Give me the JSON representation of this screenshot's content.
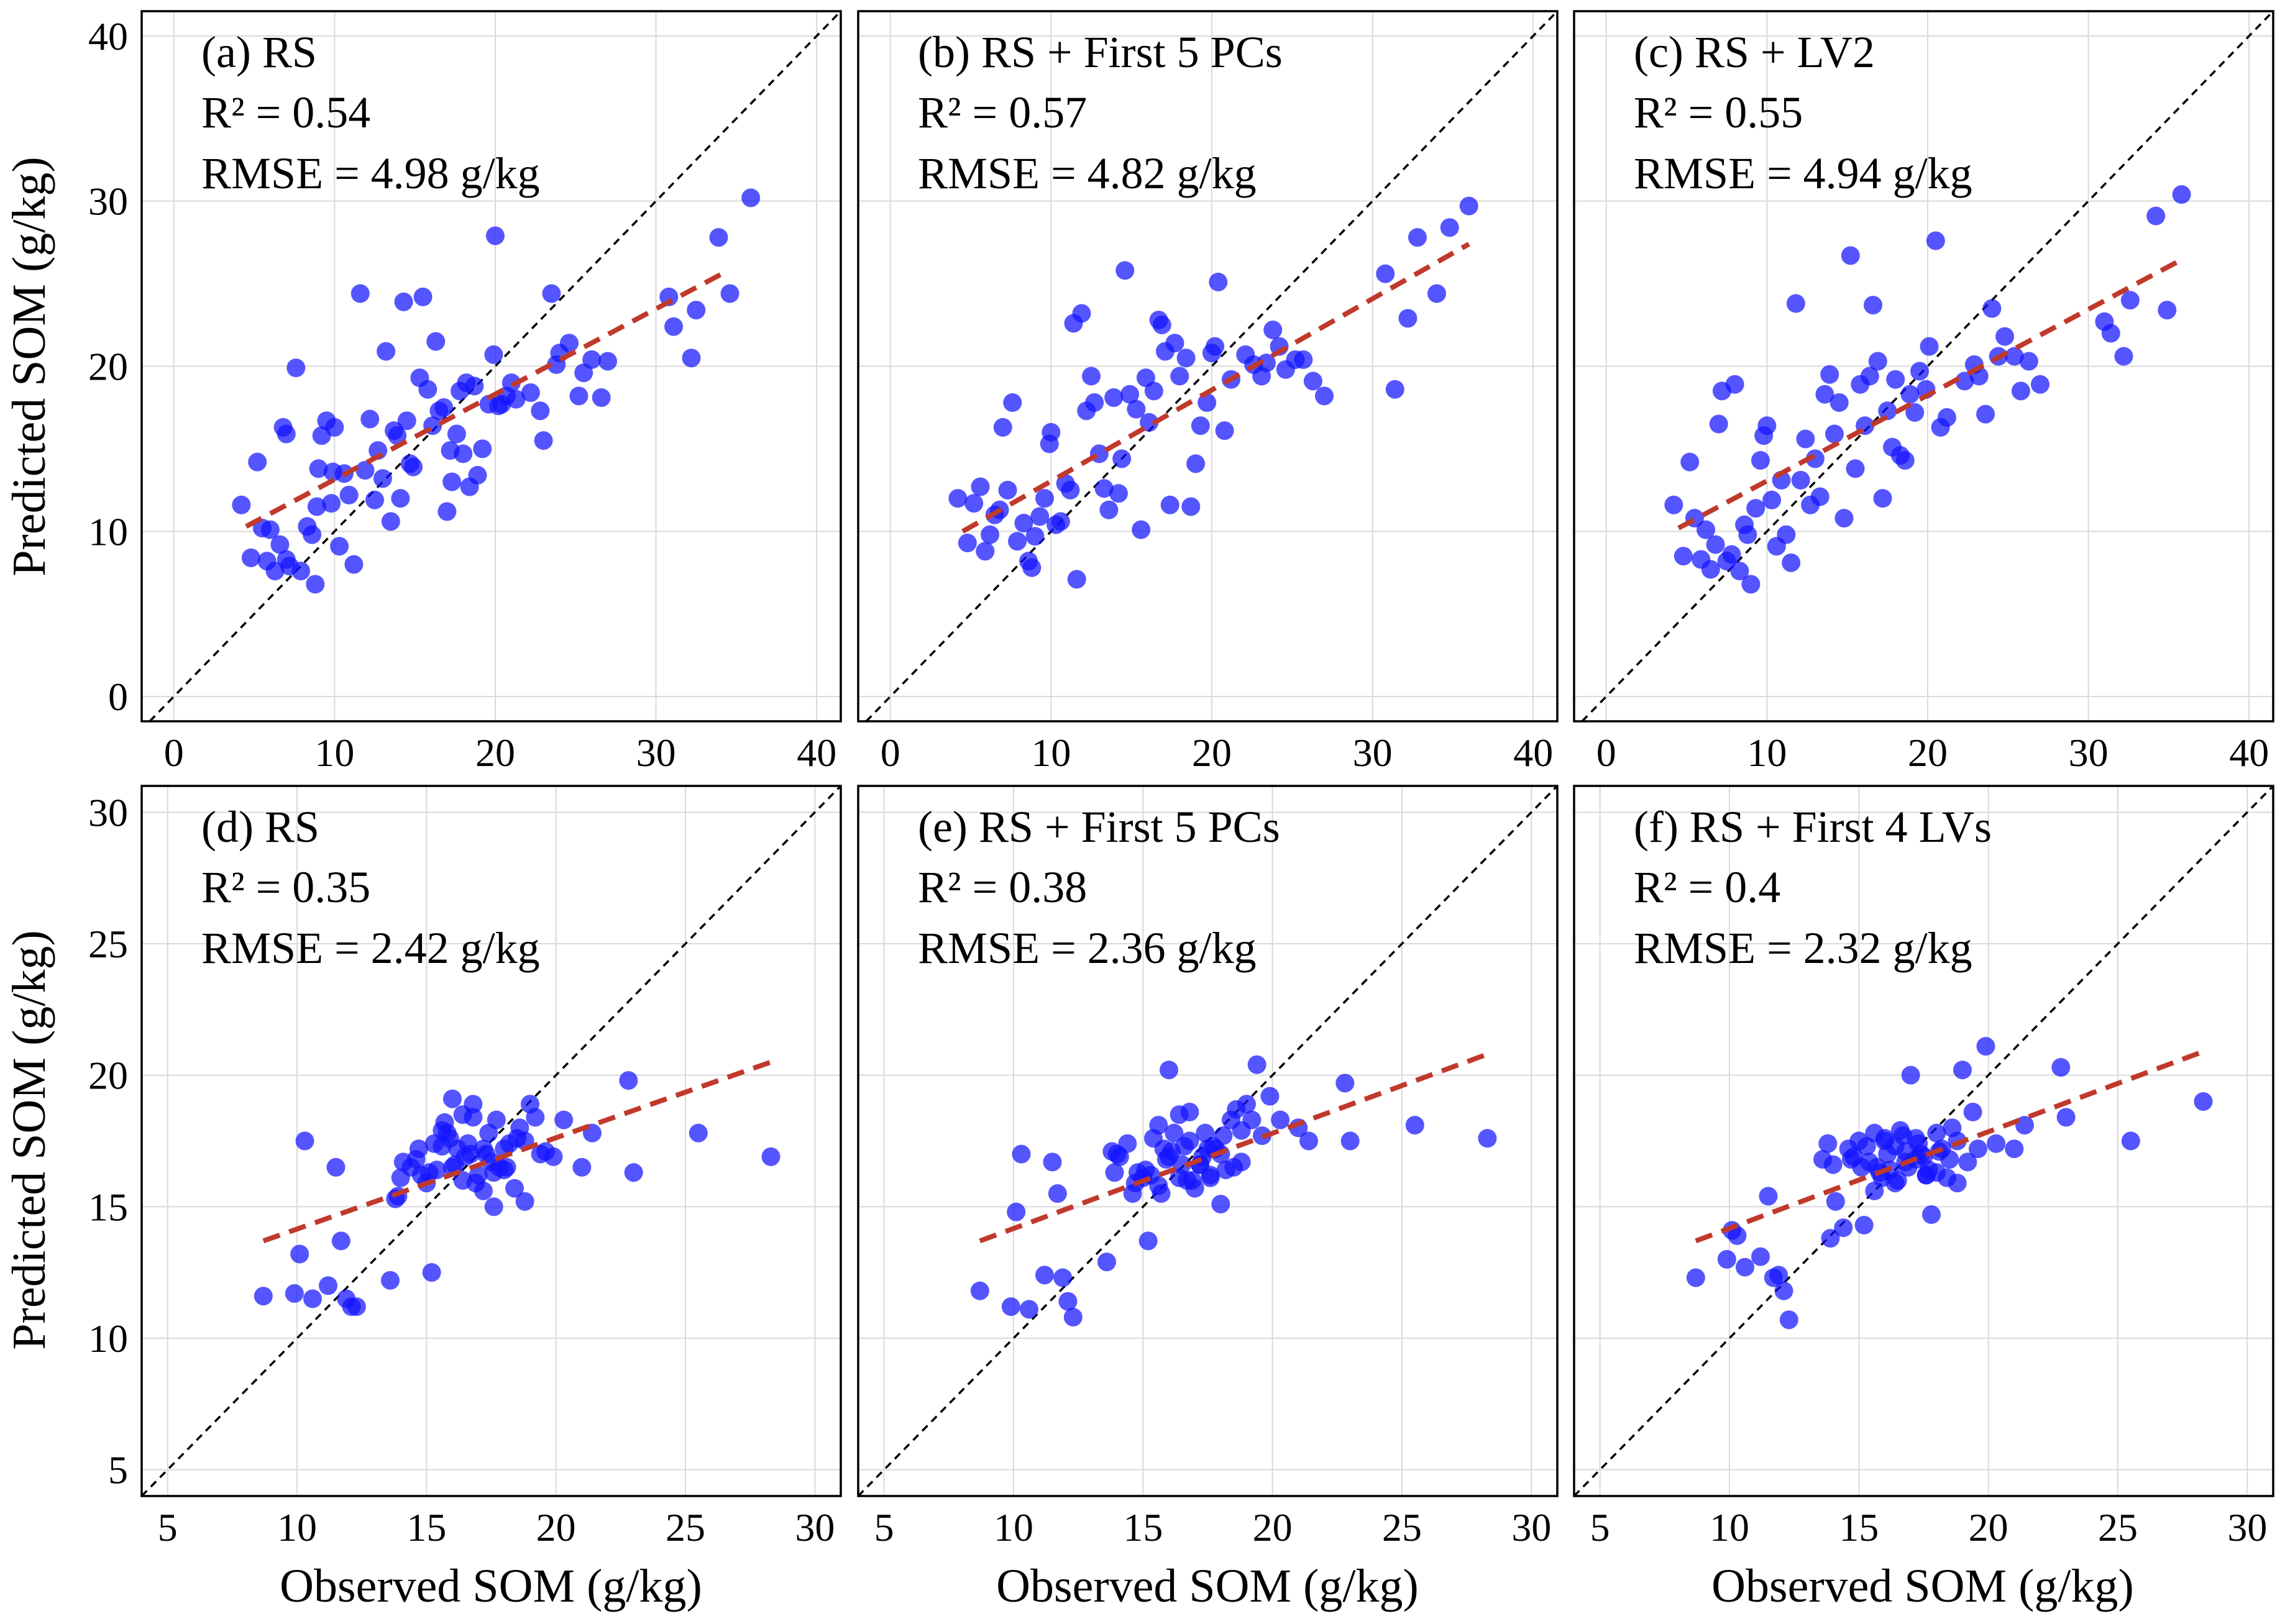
{
  "figure": {
    "ylabel": "Predicted SOM (g/kg)",
    "xlabel": "Observed SOM (g/kg)"
  },
  "colors": {
    "point": "#1414ff",
    "fit": "#c0392b",
    "identity": "#000000",
    "grid": "#d9d9d9",
    "frame": "#000000"
  },
  "chart_data": [
    {
      "type": "scatter",
      "panel": "a",
      "title": "(a) RS",
      "r2_text": "R² = 0.54",
      "rmse_text": "RMSE = 4.98 g/kg",
      "xlim": [
        -2,
        41.5
      ],
      "ylim": [
        -1.5,
        41.5
      ],
      "xticks": [
        0,
        10,
        20,
        30,
        40
      ],
      "yticks": [
        0,
        10,
        20,
        30,
        40
      ],
      "xlabel": "",
      "ylabel": "Predicted SOM (g/kg)",
      "fit_line": [
        [
          4.5,
          10.3
        ],
        [
          34.5,
          25.8
        ]
      ],
      "x": [
        4.2,
        4.8,
        5.2,
        5.5,
        5.8,
        6.0,
        6.3,
        6.6,
        6.8,
        7.0,
        7.0,
        7.2,
        7.6,
        7.9,
        8.3,
        8.6,
        8.8,
        8.9,
        9.0,
        9.2,
        9.5,
        9.8,
        9.9,
        10.0,
        10.3,
        10.6,
        10.9,
        11.2,
        11.6,
        11.9,
        12.2,
        12.5,
        12.7,
        13.0,
        13.2,
        13.5,
        13.7,
        13.9,
        14.1,
        14.3,
        14.5,
        14.7,
        14.9,
        15.3,
        15.5,
        15.8,
        16.1,
        16.3,
        16.5,
        16.8,
        17.0,
        17.2,
        17.3,
        17.6,
        17.8,
        18.0,
        18.2,
        18.4,
        18.7,
        18.9,
        19.2,
        19.6,
        19.9,
        20.0,
        20.2,
        20.4,
        20.7,
        21.0,
        21.3,
        22.2,
        22.8,
        23.0,
        23.5,
        23.8,
        24.0,
        24.6,
        25.2,
        25.5,
        26.0,
        26.6,
        27.0,
        30.8,
        31.1,
        32.2,
        32.5,
        33.9,
        34.6,
        35.9
      ],
      "y": [
        11.6,
        8.4,
        14.2,
        10.2,
        8.2,
        10.1,
        7.6,
        9.2,
        16.3,
        15.9,
        8.3,
        7.9,
        19.9,
        7.6,
        10.3,
        9.8,
        6.8,
        11.5,
        13.8,
        15.8,
        16.7,
        11.7,
        13.6,
        16.3,
        9.1,
        13.5,
        12.2,
        8.0,
        24.4,
        13.7,
        16.8,
        11.9,
        14.9,
        13.2,
        20.9,
        10.6,
        16.1,
        15.8,
        12.0,
        23.9,
        16.7,
        14.1,
        13.9,
        19.3,
        24.2,
        18.6,
        16.4,
        21.5,
        17.3,
        17.5,
        11.2,
        14.9,
        13.0,
        15.9,
        18.5,
        14.7,
        19.0,
        12.7,
        18.8,
        13.4,
        15.0,
        17.7,
        20.7,
        27.9,
        17.6,
        17.7,
        18.2,
        19.0,
        18.0,
        18.4,
        17.3,
        15.5,
        24.4,
        20.1,
        20.8,
        21.4,
        18.2,
        19.6,
        20.4,
        18.1,
        20.3,
        24.2,
        22.4,
        20.5,
        23.4,
        27.8,
        24.4,
        30.2
      ]
    },
    {
      "type": "scatter",
      "panel": "b",
      "title": "(b) RS + First 5 PCs",
      "r2_text": "R² = 0.57",
      "rmse_text": "RMSE = 4.82 g/kg",
      "xlim": [
        -2,
        41.5
      ],
      "ylim": [
        -1.5,
        41.5
      ],
      "xticks": [
        0,
        10,
        20,
        30,
        40
      ],
      "yticks": [
        0,
        10,
        20,
        30,
        40
      ],
      "xlabel": "",
      "ylabel": "",
      "fit_line": [
        [
          4.5,
          10.0
        ],
        [
          36.0,
          27.4
        ]
      ],
      "x": [
        4.2,
        4.8,
        5.2,
        5.6,
        5.9,
        6.2,
        6.5,
        6.8,
        7.0,
        7.3,
        7.6,
        7.9,
        8.3,
        8.6,
        8.8,
        9.0,
        9.3,
        9.6,
        9.9,
        10.0,
        10.3,
        10.6,
        10.9,
        11.2,
        11.4,
        11.6,
        11.9,
        12.2,
        12.5,
        12.7,
        13.0,
        13.3,
        13.6,
        13.9,
        14.2,
        14.4,
        14.6,
        14.9,
        15.3,
        15.6,
        15.9,
        16.1,
        16.4,
        16.7,
        16.9,
        17.1,
        17.4,
        17.7,
        18.0,
        18.4,
        18.7,
        19.0,
        19.3,
        19.7,
        20.0,
        20.2,
        20.4,
        20.8,
        21.2,
        22.1,
        22.6,
        23.1,
        23.4,
        23.8,
        24.2,
        24.6,
        25.2,
        25.7,
        26.3,
        27.0,
        30.8,
        31.4,
        32.2,
        32.8,
        34.0,
        34.8,
        36.0
      ],
      "y": [
        12.0,
        9.3,
        11.7,
        12.7,
        8.8,
        9.8,
        11.0,
        11.3,
        16.3,
        12.5,
        17.8,
        9.4,
        10.5,
        8.2,
        7.8,
        9.7,
        10.9,
        12.0,
        15.3,
        16.0,
        10.4,
        10.6,
        12.9,
        12.5,
        22.6,
        7.1,
        23.2,
        17.3,
        19.4,
        17.8,
        14.7,
        12.6,
        11.3,
        18.1,
        12.3,
        14.4,
        25.8,
        18.3,
        17.4,
        10.1,
        19.3,
        16.6,
        18.5,
        22.8,
        22.5,
        20.9,
        11.6,
        21.4,
        19.4,
        20.5,
        11.5,
        14.1,
        16.4,
        17.8,
        20.8,
        21.2,
        25.1,
        16.1,
        19.2,
        20.7,
        20.1,
        19.4,
        20.2,
        22.2,
        21.2,
        19.8,
        20.4,
        20.4,
        19.1,
        18.2,
        25.6,
        18.6,
        22.9,
        27.8,
        24.4,
        28.4,
        29.7
      ]
    },
    {
      "type": "scatter",
      "panel": "c",
      "title": "(c) RS + LV2",
      "r2_text": "R² = 0.55",
      "rmse_text": "RMSE = 4.94 g/kg",
      "xlim": [
        -2,
        41.5
      ],
      "ylim": [
        -1.5,
        41.5
      ],
      "xticks": [
        0,
        10,
        20,
        30,
        40
      ],
      "yticks": [
        0,
        10,
        20,
        30,
        40
      ],
      "xlabel": "",
      "ylabel": "",
      "fit_line": [
        [
          4.5,
          10.2
        ],
        [
          35.5,
          26.3
        ]
      ],
      "x": [
        4.2,
        4.8,
        5.2,
        5.5,
        5.9,
        6.2,
        6.5,
        6.8,
        7.0,
        7.2,
        7.5,
        7.8,
        8.0,
        8.3,
        8.6,
        8.8,
        9.0,
        9.3,
        9.6,
        9.8,
        10.0,
        10.3,
        10.6,
        10.9,
        11.2,
        11.5,
        11.8,
        12.1,
        12.4,
        12.7,
        13.0,
        13.3,
        13.6,
        13.9,
        14.2,
        14.5,
        14.8,
        15.2,
        15.5,
        15.8,
        16.1,
        16.4,
        16.6,
        16.9,
        17.2,
        17.5,
        17.8,
        18.0,
        18.3,
        18.6,
        18.9,
        19.2,
        19.5,
        19.9,
        20.1,
        20.5,
        20.8,
        21.2,
        22.3,
        22.9,
        23.2,
        23.6,
        24.0,
        24.4,
        24.8,
        25.4,
        25.8,
        26.3,
        27.0,
        31.0,
        31.4,
        32.2,
        32.6,
        34.2,
        34.9,
        35.8
      ],
      "y": [
        11.6,
        8.5,
        14.2,
        10.8,
        8.3,
        10.1,
        7.7,
        9.2,
        16.5,
        18.5,
        8.2,
        8.6,
        18.9,
        7.6,
        10.4,
        9.8,
        6.8,
        11.4,
        14.3,
        15.8,
        16.4,
        11.9,
        9.1,
        13.1,
        9.8,
        8.1,
        23.8,
        13.1,
        15.6,
        11.6,
        14.4,
        12.1,
        18.3,
        19.5,
        15.9,
        17.8,
        10.8,
        26.7,
        13.8,
        18.9,
        16.4,
        19.4,
        23.7,
        20.3,
        12.0,
        17.3,
        15.1,
        19.2,
        14.6,
        14.3,
        18.3,
        17.2,
        19.7,
        18.6,
        21.2,
        27.6,
        16.3,
        16.9,
        19.1,
        20.1,
        19.4,
        17.1,
        23.5,
        20.6,
        21.8,
        20.6,
        18.5,
        20.3,
        18.9,
        22.7,
        22.0,
        20.6,
        24.0,
        29.1,
        23.4,
        30.4
      ]
    },
    {
      "type": "scatter",
      "panel": "d",
      "title": "(d) RS",
      "r2_text": "R² = 0.35",
      "rmse_text": "RMSE = 2.42 g/kg",
      "xlim": [
        4,
        31
      ],
      "ylim": [
        4,
        31
      ],
      "xticks": [
        5,
        10,
        15,
        20,
        25,
        30
      ],
      "yticks": [
        5,
        10,
        15,
        20,
        25,
        30
      ],
      "xlabel": "Observed SOM (g/kg)",
      "ylabel": "Predicted SOM (g/kg)",
      "fit_line": [
        [
          8.7,
          13.7
        ],
        [
          28.3,
          20.5
        ]
      ],
      "x": [
        8.7,
        9.9,
        10.1,
        10.3,
        10.6,
        11.2,
        11.5,
        11.7,
        11.9,
        12.1,
        12.3,
        13.6,
        13.9,
        14.1,
        14.4,
        14.7,
        15.0,
        15.2,
        15.4,
        15.6,
        15.8,
        16.0,
        16.2,
        16.4,
        16.6,
        16.8,
        17.0,
        17.2,
        17.4,
        17.6,
        17.8,
        18.0,
        18.2,
        18.4,
        18.6,
        18.8,
        19.0,
        19.2,
        19.4,
        19.6,
        19.9,
        20.3,
        21.0,
        21.4,
        22.8,
        23.0,
        25.5,
        28.3,
        14.0,
        14.6,
        15.3,
        15.7,
        16.1,
        16.5,
        16.9,
        17.3,
        17.7,
        18.1,
        18.5,
        15.1,
        15.9,
        16.7,
        17.5,
        13.8,
        14.8,
        15.6,
        16.4,
        17.2,
        18.0,
        18.8,
        16.0,
        16.8,
        17.6
      ],
      "y": [
        11.6,
        11.7,
        13.2,
        17.5,
        11.5,
        12.0,
        16.5,
        13.7,
        11.5,
        11.2,
        11.2,
        12.2,
        15.4,
        16.7,
        16.5,
        17.2,
        15.9,
        12.5,
        16.4,
        17.3,
        17.8,
        19.1,
        17.2,
        16.0,
        17.4,
        18.9,
        16.2,
        15.6,
        17.8,
        15.0,
        16.5,
        17.2,
        17.4,
        15.7,
        18.0,
        15.2,
        18.9,
        18.4,
        17.0,
        17.1,
        16.9,
        18.3,
        16.5,
        17.8,
        19.8,
        16.3,
        17.8,
        16.9,
        16.1,
        16.8,
        17.4,
        18.2,
        16.6,
        16.9,
        15.9,
        17.0,
        18.3,
        16.5,
        17.6,
        16.3,
        17.6,
        17.0,
        16.7,
        15.3,
        16.2,
        17.9,
        18.5,
        17.2,
        16.4,
        17.5,
        16.5,
        18.4,
        16.3
      ]
    },
    {
      "type": "scatter",
      "panel": "e",
      "title": "(e) RS + First 5 PCs",
      "r2_text": "R² = 0.38",
      "rmse_text": "RMSE = 2.36 g/kg",
      "xlim": [
        4,
        31
      ],
      "ylim": [
        4,
        31
      ],
      "xticks": [
        5,
        10,
        15,
        20,
        25,
        30
      ],
      "yticks": [
        5,
        10,
        15,
        20,
        25,
        30
      ],
      "xlabel": "Observed SOM (g/kg)",
      "ylabel": "",
      "fit_line": [
        [
          8.7,
          13.7
        ],
        [
          28.3,
          20.8
        ]
      ],
      "x": [
        8.7,
        9.9,
        10.1,
        10.3,
        10.6,
        11.2,
        11.5,
        11.7,
        11.9,
        12.1,
        12.3,
        13.6,
        13.9,
        14.1,
        14.4,
        14.7,
        15.0,
        15.2,
        15.4,
        15.6,
        15.8,
        16.0,
        16.2,
        16.4,
        16.6,
        16.8,
        17.0,
        17.2,
        17.4,
        17.6,
        17.8,
        18.0,
        18.2,
        18.4,
        18.6,
        18.8,
        19.0,
        19.2,
        19.4,
        19.6,
        19.9,
        20.3,
        21.0,
        21.4,
        22.8,
        23.0,
        25.5,
        28.3,
        14.0,
        14.6,
        15.3,
        15.7,
        16.1,
        16.5,
        16.9,
        17.3,
        17.7,
        18.1,
        18.5,
        15.1,
        15.9,
        16.7,
        17.5,
        13.8,
        14.8,
        15.6,
        16.4,
        17.2,
        18.0,
        18.8,
        16.0,
        16.8,
        17.6
      ],
      "y": [
        11.8,
        11.2,
        14.8,
        17.0,
        11.1,
        12.4,
        16.7,
        15.5,
        12.3,
        11.4,
        10.8,
        12.9,
        16.3,
        16.9,
        17.4,
        15.9,
        16.1,
        13.7,
        17.6,
        18.1,
        17.2,
        20.2,
        17.8,
        16.1,
        17.3,
        18.6,
        15.7,
        16.6,
        17.8,
        16.2,
        17.2,
        17.0,
        16.4,
        18.3,
        18.7,
        16.7,
        18.9,
        18.3,
        20.4,
        17.7,
        19.2,
        18.3,
        18.0,
        17.5,
        19.7,
        17.5,
        18.1,
        17.6,
        17.0,
        15.5,
        16.2,
        15.5,
        17.1,
        16.6,
        16.0,
        16.9,
        17.3,
        17.7,
        16.5,
        16.4,
        16.8,
        16.0,
        17.2,
        17.1,
        16.3,
        15.8,
        18.5,
        16.6,
        15.1,
        17.9,
        16.9,
        17.5,
        16.1
      ]
    },
    {
      "type": "scatter",
      "panel": "f",
      "title": "(f) RS + First 4 LVs",
      "r2_text": "R² = 0.4",
      "rmse_text": "RMSE = 2.32 g/kg",
      "xlim": [
        4,
        31
      ],
      "ylim": [
        4,
        31
      ],
      "xticks": [
        5,
        10,
        15,
        20,
        25,
        30
      ],
      "yticks": [
        5,
        10,
        15,
        20,
        25,
        30
      ],
      "xlabel": "Observed SOM (g/kg)",
      "ylabel": "",
      "fit_line": [
        [
          8.7,
          13.7
        ],
        [
          28.3,
          20.9
        ]
      ],
      "x": [
        8.7,
        9.9,
        10.1,
        10.3,
        10.6,
        11.2,
        11.5,
        11.7,
        11.9,
        12.1,
        12.3,
        13.6,
        13.9,
        14.1,
        14.4,
        14.7,
        15.0,
        15.2,
        15.4,
        15.6,
        15.8,
        16.0,
        16.2,
        16.4,
        16.6,
        16.8,
        17.0,
        17.2,
        17.4,
        17.6,
        17.8,
        18.0,
        18.2,
        18.4,
        18.6,
        18.8,
        19.0,
        19.2,
        19.4,
        19.6,
        19.9,
        20.3,
        21.0,
        21.4,
        22.8,
        23.0,
        25.5,
        28.3,
        14.0,
        14.6,
        15.3,
        15.7,
        16.1,
        16.5,
        16.9,
        17.3,
        17.7,
        18.1,
        18.5,
        15.1,
        15.9,
        16.7,
        17.5,
        13.8,
        14.8,
        15.6,
        16.4,
        17.2,
        18.0,
        18.8,
        16.0,
        16.8,
        17.6
      ],
      "y": [
        12.3,
        13.0,
        14.1,
        13.9,
        12.7,
        13.1,
        15.4,
        12.3,
        12.4,
        11.8,
        10.7,
        16.8,
        13.8,
        15.2,
        14.2,
        16.8,
        17.5,
        14.3,
        16.7,
        17.8,
        16.3,
        17.5,
        16.4,
        15.9,
        17.9,
        16.7,
        20.0,
        17.6,
        17.0,
        16.2,
        14.7,
        17.8,
        17.2,
        16.1,
        18.0,
        15.9,
        20.2,
        16.7,
        18.6,
        17.2,
        21.1,
        17.4,
        17.2,
        18.1,
        20.3,
        18.4,
        17.5,
        19.0,
        16.6,
        17.2,
        17.3,
        16.5,
        17.0,
        16.0,
        16.5,
        17.4,
        16.4,
        17.1,
        16.8,
        16.5,
        16.1,
        17.7,
        16.9,
        17.4,
        16.9,
        15.6,
        17.3,
        16.8,
        16.3,
        17.5,
        17.6,
        17.1,
        16.2
      ]
    }
  ]
}
